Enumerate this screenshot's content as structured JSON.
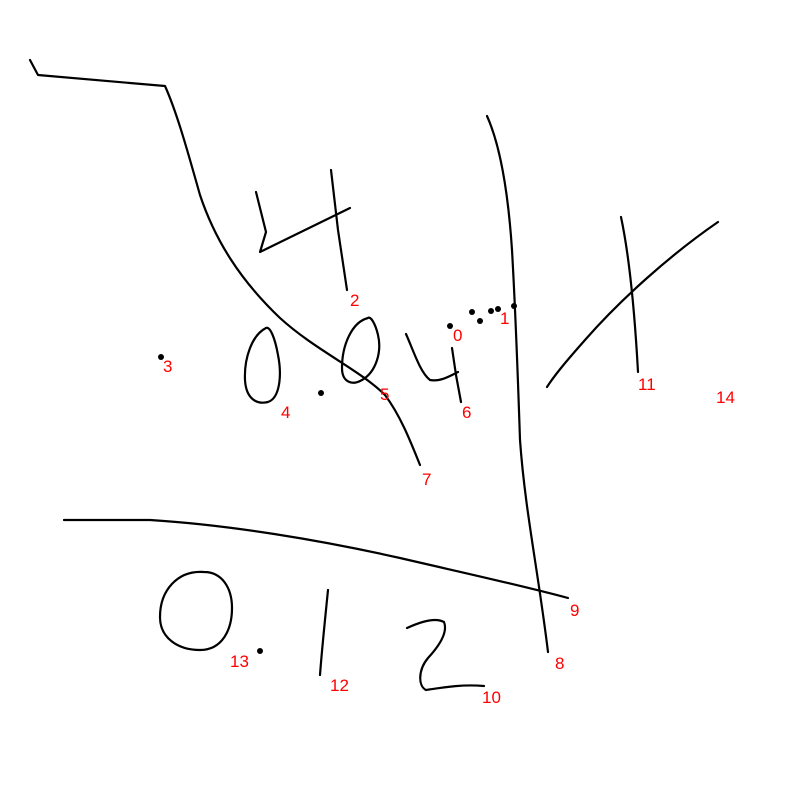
{
  "colors": {
    "ink": "#000000",
    "label": "#ff0000",
    "background": "#ffffff"
  },
  "strokes": [
    {
      "id": "0",
      "label": "0"
    },
    {
      "id": "1",
      "label": "1"
    },
    {
      "id": "2",
      "label": "2"
    },
    {
      "id": "3",
      "label": "3"
    },
    {
      "id": "4",
      "label": "4"
    },
    {
      "id": "5",
      "label": "5"
    },
    {
      "id": "6",
      "label": "6"
    },
    {
      "id": "7",
      "label": "7"
    },
    {
      "id": "8",
      "label": "8"
    },
    {
      "id": "9",
      "label": "9"
    },
    {
      "id": "10",
      "label": "10"
    },
    {
      "id": "11",
      "label": "11"
    },
    {
      "id": "12",
      "label": "12"
    },
    {
      "id": "13",
      "label": "13"
    },
    {
      "id": "14",
      "label": "14"
    }
  ]
}
